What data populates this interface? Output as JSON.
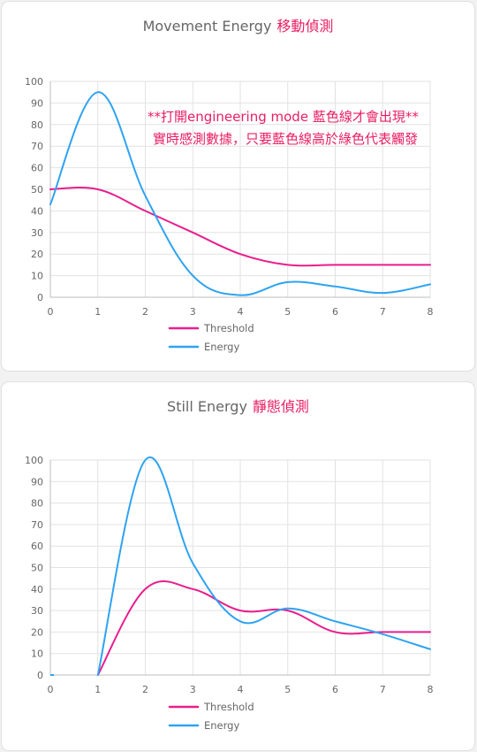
{
  "colors": {
    "threshold": "#e91e8c",
    "energy": "#2ea3f2",
    "grid": "#e2e2e2",
    "axis": "#bdbdbd",
    "accent": "#e91e63"
  },
  "cards": [
    {
      "title": "Movement Energy",
      "title_cn": "移動偵測",
      "notes": [
        "**打開engineering mode 藍色線才會出現**",
        "實時感測數據，只要藍色線高於綠色代表觸發"
      ]
    },
    {
      "title": "Still Energy",
      "title_cn": "靜態偵測",
      "notes": []
    }
  ],
  "chart_data": [
    {
      "type": "line",
      "title": "Movement Energy 移動偵測",
      "xlabel": "",
      "ylabel": "",
      "x": [
        0,
        1,
        2,
        3,
        4,
        5,
        6,
        7,
        8
      ],
      "xlim": [
        0,
        8
      ],
      "ylim": [
        0,
        100
      ],
      "xticks": [
        "0",
        "1",
        "2",
        "3",
        "4",
        "5",
        "6",
        "7",
        "8"
      ],
      "yticks": [
        "0",
        "10",
        "20",
        "30",
        "40",
        "50",
        "60",
        "70",
        "80",
        "90",
        "100"
      ],
      "grid": true,
      "legend": "bottom",
      "series": [
        {
          "name": "Threshold",
          "color": "#e91e8c",
          "values": [
            50,
            50,
            40,
            30,
            20,
            15,
            15,
            15,
            15
          ]
        },
        {
          "name": "Energy",
          "color": "#2ea3f2",
          "values": [
            43,
            95,
            47,
            10,
            1,
            7,
            5,
            2,
            6
          ]
        }
      ]
    },
    {
      "type": "line",
      "title": "Still Energy 靜態偵測",
      "xlabel": "",
      "ylabel": "",
      "x": [
        0,
        1,
        2,
        3,
        4,
        5,
        6,
        7,
        8
      ],
      "xlim": [
        0,
        8
      ],
      "ylim": [
        0,
        100
      ],
      "xticks": [
        "0",
        "1",
        "2",
        "3",
        "4",
        "5",
        "6",
        "7",
        "8"
      ],
      "yticks": [
        "0",
        "10",
        "20",
        "30",
        "40",
        "50",
        "60",
        "70",
        "80",
        "90",
        "100"
      ],
      "grid": true,
      "legend": "bottom",
      "series": [
        {
          "name": "Threshold",
          "color": "#e91e8c",
          "values": [
            null,
            0,
            40,
            40,
            30,
            30,
            20,
            20,
            20
          ]
        },
        {
          "name": "Energy",
          "color": "#2ea3f2",
          "values": [
            null,
            0,
            100,
            52,
            25,
            31,
            25,
            19,
            12
          ]
        }
      ]
    }
  ]
}
